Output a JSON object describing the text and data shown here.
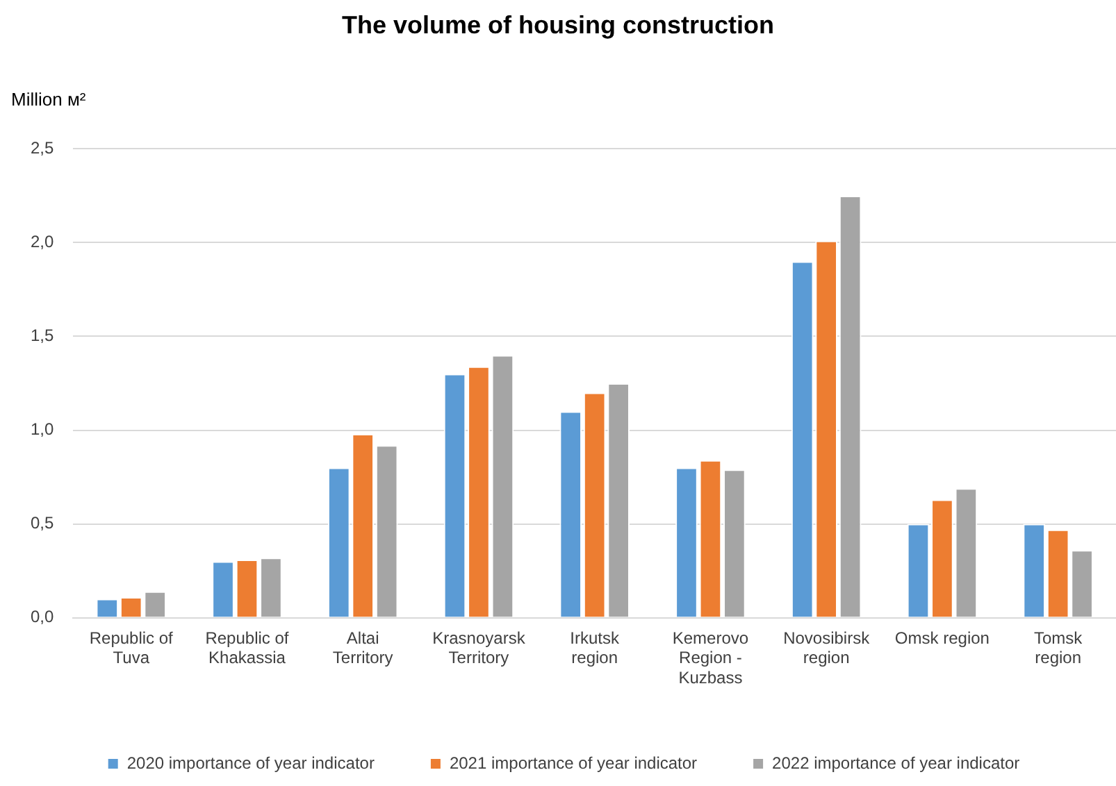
{
  "chart_data": {
    "type": "bar",
    "title": "The volume of housing construction",
    "ylabel": "Million м²",
    "categories": [
      "Republic of Tuva",
      "Republic of Khakassia",
      "Altai Territory",
      "Krasnoyarsk Territory",
      "Irkutsk region",
      "Kemerovo Region - Kuzbass",
      "Novosibirsk region",
      "Omsk region",
      "Tomsk region"
    ],
    "series": [
      {
        "name": "2020 importance of year indicator",
        "color": "#5b9bd5",
        "values": [
          0.1,
          0.3,
          0.8,
          1.3,
          1.1,
          0.8,
          1.9,
          0.5,
          0.5
        ]
      },
      {
        "name": "2021 importance of year indicator",
        "color": "#ed7d31",
        "values": [
          0.11,
          0.31,
          0.98,
          1.34,
          1.2,
          0.84,
          2.01,
          0.63,
          0.47
        ]
      },
      {
        "name": "2022 importance of year indicator",
        "color": "#a5a5a5",
        "values": [
          0.14,
          0.32,
          0.92,
          1.4,
          1.25,
          0.79,
          2.25,
          0.69,
          0.36
        ]
      }
    ],
    "ylim": [
      0,
      2.5
    ],
    "yticks": [
      {
        "value": 0,
        "label": "0,0"
      },
      {
        "value": 0.5,
        "label": "0,5"
      },
      {
        "value": 1,
        "label": "1,0"
      },
      {
        "value": 1.5,
        "label": "1,5"
      },
      {
        "value": 2,
        "label": "2,0"
      },
      {
        "value": 2.5,
        "label": "2,5"
      }
    ],
    "grid": "y",
    "legend": "bottom"
  }
}
